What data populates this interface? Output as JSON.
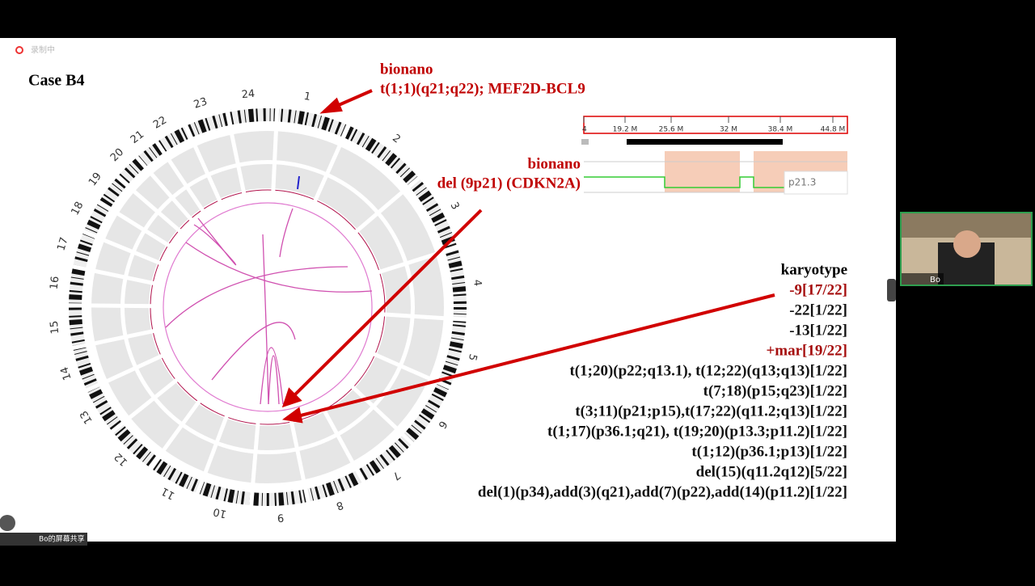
{
  "recording_label": "录制中",
  "slide": {
    "title": "Case B4",
    "annotation_1": {
      "source": "bionano",
      "text": "t(1;1)(q21;q22); MEF2D-BCL9"
    },
    "annotation_2": {
      "source": "bionano",
      "text": "del (9p21) (CDKN2A)"
    },
    "chromosome_labels": [
      "1",
      "2",
      "3",
      "4",
      "5",
      "6",
      "7",
      "8",
      "9",
      "10",
      "11",
      "12",
      "13",
      "14",
      "15",
      "16",
      "17",
      "18",
      "19",
      "20",
      "21",
      "22",
      "23",
      "24"
    ],
    "browser": {
      "ruler_labels": [
        "4",
        "19.2 M",
        "25.6 M",
        "32 M",
        "38.4 M",
        "44.8 M"
      ],
      "tooltip": "p21.3"
    },
    "karyotype": {
      "heading": "karyotype",
      "lines": [
        {
          "text": "-9[17/22]",
          "color": "#a50d0d"
        },
        {
          "text": "-22[1/22]",
          "color": "#111111"
        },
        {
          "text": "-13[1/22]",
          "color": "#111111"
        },
        {
          "text": "+mar[19/22]",
          "color": "#a50d0d"
        },
        {
          "text": "t(1;20)(p22;q13.1), t(12;22)(q13;q13)[1/22]",
          "color": "#111111"
        },
        {
          "text": "t(7;18)(p15;q23)[1/22]",
          "color": "#111111"
        },
        {
          "text": "t(3;11)(p21;p15),t(17;22)(q11.2;q13)[1/22]",
          "color": "#111111"
        },
        {
          "text": "t(1;17)(p36.1;q21), t(19;20)(p13.3;p11.2)[1/22]",
          "color": "#111111"
        },
        {
          "text": "t(1;12)(p36.1;p13)[1/22]",
          "color": "#111111"
        },
        {
          "text": "del(15)(q11.2q12)[5/22]",
          "color": "#111111"
        },
        {
          "text": "del(1)(p34),add(3)(q21),add(7)(p22),add(14)(p11.2)[1/22]",
          "color": "#111111"
        }
      ]
    }
  },
  "meeting": {
    "presenter_name": "Bo",
    "share_label": "Bo的屏幕共享"
  }
}
